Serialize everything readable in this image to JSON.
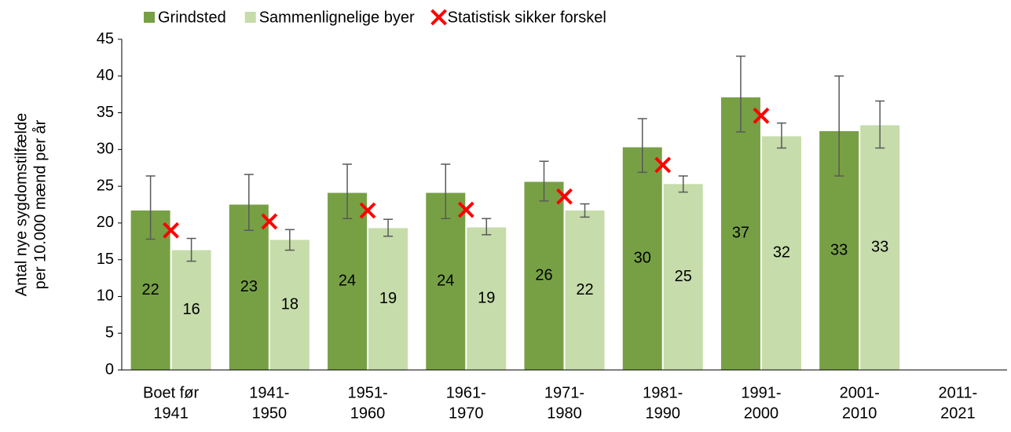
{
  "chart_data": {
    "type": "bar",
    "ylabel": [
      "Antal nye sygdomstilfælde",
      "per 10.000 mænd per år"
    ],
    "categories": [
      [
        "Boet før",
        "1941"
      ],
      [
        "1941-",
        "1950"
      ],
      [
        "1951-",
        "1960"
      ],
      [
        "1961-",
        "1970"
      ],
      [
        "1971-",
        "1980"
      ],
      [
        "1981-",
        "1990"
      ],
      [
        "1991-",
        "2000"
      ],
      [
        "2001-",
        "2010"
      ],
      [
        "2011-",
        "2021"
      ]
    ],
    "series": [
      {
        "name": "Grindsted",
        "color": "#77a045",
        "values": [
          21.7,
          22.5,
          24.1,
          24.1,
          25.6,
          30.3,
          37.1,
          32.5,
          null
        ],
        "value_labels": [
          "22",
          "23",
          "24",
          "24",
          "26",
          "30",
          "37",
          "33",
          null
        ],
        "ci_low": [
          17.8,
          19.0,
          20.6,
          20.6,
          23.0,
          26.9,
          32.4,
          26.4,
          null
        ],
        "ci_high": [
          26.4,
          26.6,
          28.0,
          28.0,
          28.4,
          34.2,
          42.7,
          40.0,
          null
        ]
      },
      {
        "name": "Sammenlignelige byer",
        "color": "#c6dcaa",
        "values": [
          16.3,
          17.7,
          19.3,
          19.4,
          21.7,
          25.3,
          31.8,
          33.3,
          null
        ],
        "value_labels": [
          "16",
          "18",
          "19",
          "19",
          "22",
          "25",
          "32",
          "33",
          null
        ],
        "ci_low": [
          14.8,
          16.3,
          18.2,
          18.4,
          20.8,
          24.2,
          30.2,
          30.2,
          null
        ],
        "ci_high": [
          17.9,
          19.1,
          20.5,
          20.6,
          22.6,
          26.4,
          33.6,
          36.6,
          null
        ]
      },
      {
        "name": "Statistisk sikker forskel",
        "color": "#ff0000",
        "marker": "x",
        "values": [
          19.0,
          20.2,
          21.7,
          21.8,
          23.6,
          27.9,
          34.6,
          null,
          null
        ]
      }
    ],
    "ylim": [
      0,
      45
    ],
    "yticks": [
      0,
      5,
      10,
      15,
      20,
      25,
      30,
      35,
      40,
      45
    ],
    "grid": false,
    "legend": "top"
  }
}
